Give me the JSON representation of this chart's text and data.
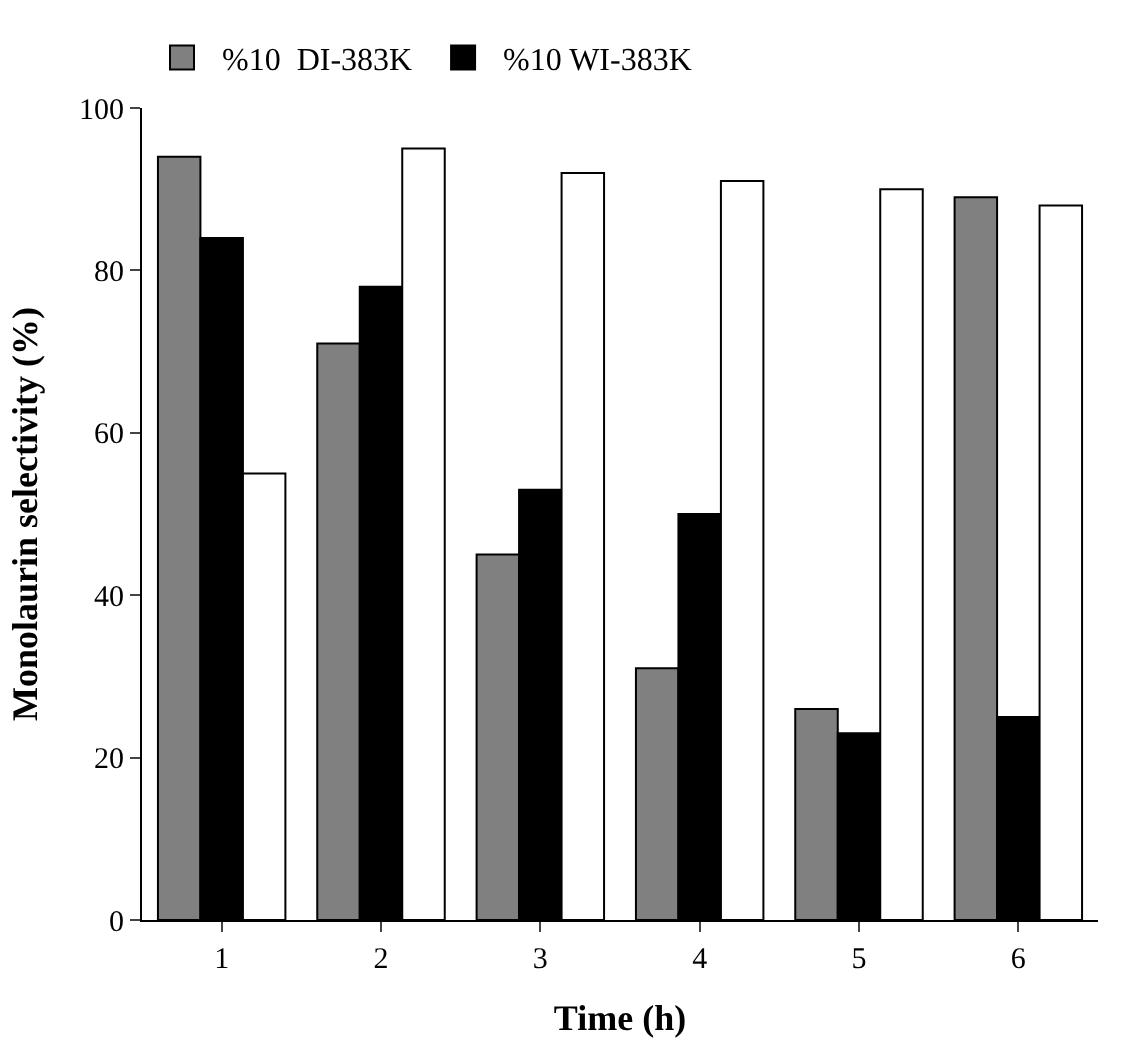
{
  "chart_data": {
    "type": "bar",
    "xlabel": "Time (h)",
    "ylabel": "Monolaurin selectivity (%)",
    "categories": [
      "1",
      "2",
      "3",
      "4",
      "5",
      "6"
    ],
    "series": [
      {
        "name": "%10  DI-383K",
        "color": "#808080",
        "values": [
          94,
          71,
          45,
          31,
          26,
          89
        ]
      },
      {
        "name": "%10 WI-383K",
        "color": "#000000",
        "values": [
          84,
          78,
          53,
          50,
          23,
          25
        ]
      },
      {
        "color": "#ffffff",
        "values": [
          55,
          95,
          92,
          91,
          90,
          88
        ]
      }
    ],
    "ylim": [
      0,
      100
    ],
    "yticks": [
      0,
      20,
      40,
      60,
      80,
      100
    ],
    "legend": "top"
  }
}
